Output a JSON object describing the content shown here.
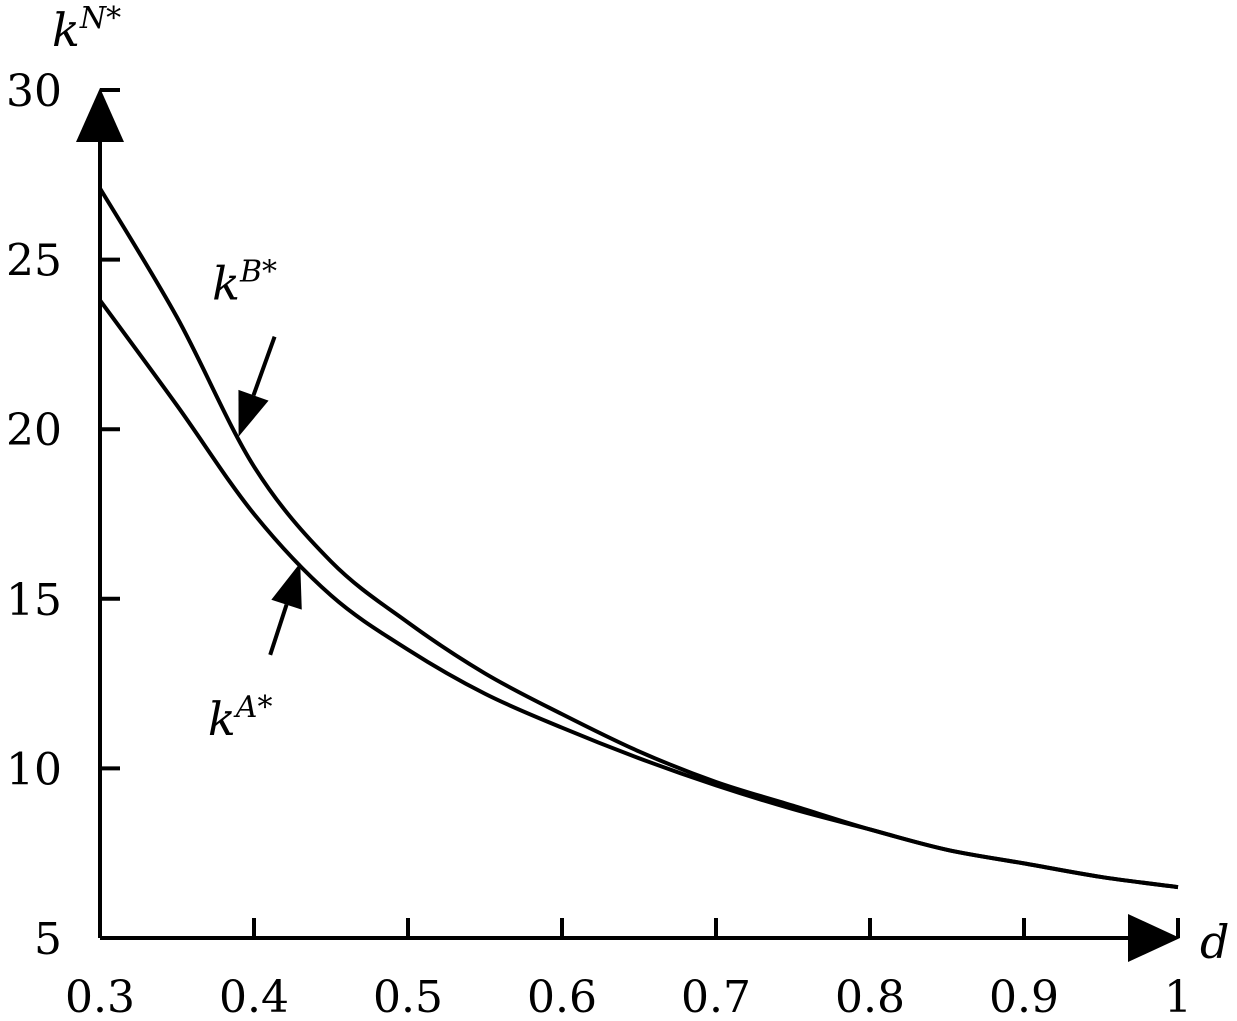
{
  "chart_data": {
    "type": "line",
    "x_axis": {
      "label": "d",
      "range": [
        0.3,
        1.0
      ],
      "ticks": [
        0.3,
        0.4,
        0.5,
        0.6,
        0.7,
        0.8,
        0.9,
        1.0
      ],
      "tick_labels": [
        "0.3",
        "0.4",
        "0.5",
        "0.6",
        "0.7",
        "0.8",
        "0.9",
        "1"
      ]
    },
    "y_axis": {
      "label_base": "k",
      "label_sup": "N*",
      "range": [
        5,
        30
      ],
      "ticks": [
        5,
        10,
        15,
        20,
        25,
        30
      ],
      "tick_labels": [
        "5",
        "10",
        "15",
        "20",
        "25",
        "30"
      ]
    },
    "grid": false,
    "series": [
      {
        "name_base": "k",
        "name_sup": "B*",
        "x": [
          0.3,
          0.35,
          0.4,
          0.45,
          0.5,
          0.55,
          0.6,
          0.65,
          0.7,
          0.75,
          0.8,
          0.85,
          0.9,
          0.95,
          1.0
        ],
        "y": [
          27.1,
          23.3,
          18.9,
          16.1,
          14.3,
          12.8,
          11.6,
          10.5,
          9.6,
          8.9,
          8.2,
          7.6,
          7.2,
          6.8,
          6.5
        ],
        "arrow_at_x": 0.39
      },
      {
        "name_base": "k",
        "name_sup": "A*",
        "x": [
          0.3,
          0.35,
          0.4,
          0.45,
          0.5,
          0.55,
          0.6,
          0.65,
          0.7,
          0.75,
          0.8,
          0.85,
          0.9,
          0.95,
          1.0
        ],
        "y": [
          23.8,
          20.7,
          17.5,
          15.1,
          13.5,
          12.2,
          11.2,
          10.3,
          9.5,
          8.8,
          8.2,
          7.6,
          7.2,
          6.8,
          6.5
        ],
        "arrow_at_x": 0.43
      }
    ]
  }
}
